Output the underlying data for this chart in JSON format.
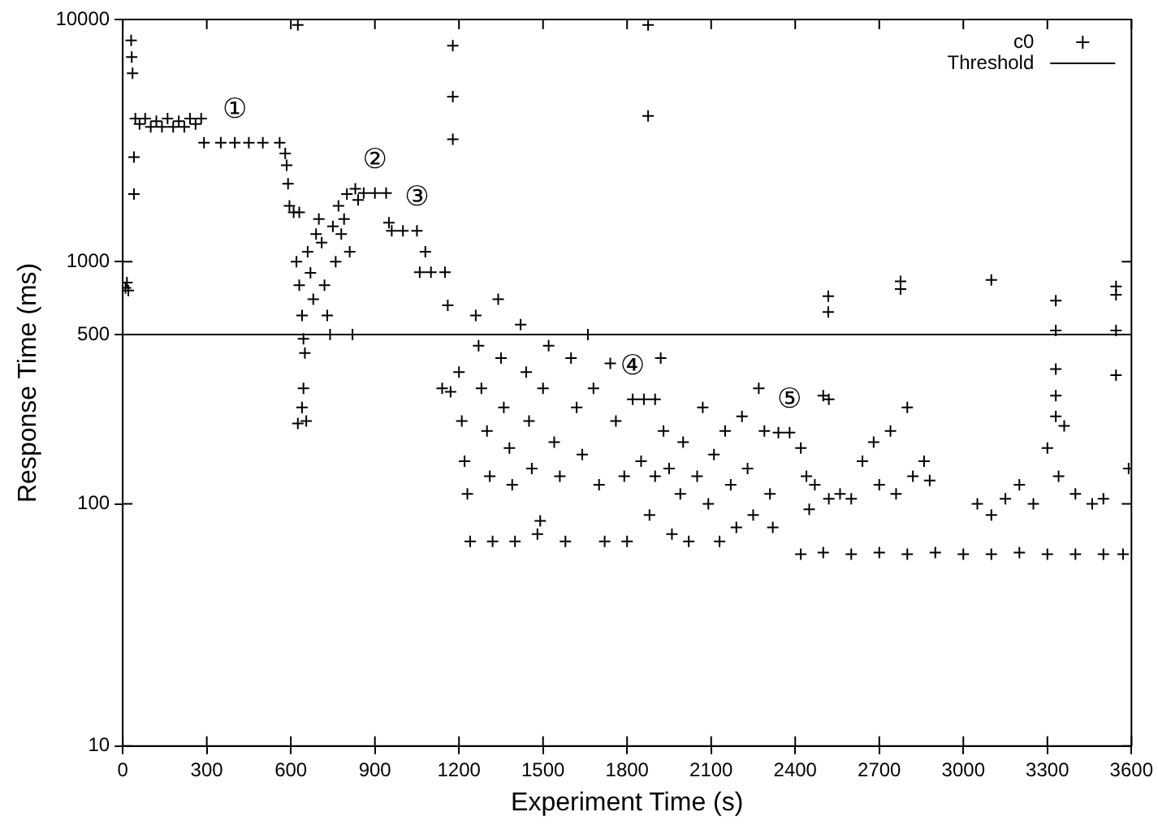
{
  "chart_data": {
    "type": "scatter",
    "xlabel": "Experiment Time (s)",
    "ylabel": "Response Time (ms)",
    "xlim": [
      0,
      3600
    ],
    "xticks": [
      0,
      300,
      600,
      900,
      1200,
      1500,
      1800,
      2100,
      2400,
      2700,
      3000,
      3300,
      3600
    ],
    "ylim": [
      10,
      10000
    ],
    "yticks": [
      10,
      100,
      500,
      1000,
      10000
    ],
    "log": "y",
    "grid": false,
    "legend": "top right",
    "marker": "cross",
    "series": [
      {
        "name": "c0",
        "color": "#000000",
        "x": [
          10,
          15,
          20,
          30,
          32,
          35,
          40,
          40,
          45,
          60,
          80,
          100,
          120,
          140,
          160,
          180,
          200,
          220,
          240,
          260,
          280,
          290,
          350,
          400,
          450,
          500,
          560,
          580,
          585,
          590,
          595,
          610,
          630,
          620,
          630,
          640,
          645,
          650,
          625,
          640,
          645,
          655,
          625,
          660,
          670,
          680,
          690,
          700,
          710,
          720,
          730,
          740,
          750,
          760,
          770,
          780,
          790,
          800,
          810,
          820,
          830,
          840,
          860,
          900,
          940,
          950,
          960,
          1000,
          1050,
          1080,
          1060,
          1100,
          1150,
          1160,
          1140,
          1170,
          1178,
          1178,
          1178,
          1200,
          1210,
          1220,
          1230,
          1240,
          1260,
          1270,
          1280,
          1300,
          1310,
          1320,
          1340,
          1350,
          1360,
          1380,
          1390,
          1400,
          1420,
          1440,
          1450,
          1460,
          1480,
          1490,
          1500,
          1520,
          1540,
          1560,
          1580,
          1600,
          1620,
          1640,
          1660,
          1680,
          1700,
          1720,
          1740,
          1760,
          1790,
          1800,
          1820,
          1860,
          1900,
          1875,
          1875,
          1850,
          1880,
          1900,
          1920,
          1930,
          1950,
          1960,
          1990,
          2000,
          2020,
          2050,
          2070,
          2090,
          2110,
          2130,
          2150,
          2170,
          2190,
          2210,
          2230,
          2250,
          2270,
          2290,
          2310,
          2320,
          2340,
          2380,
          2420,
          2500,
          2600,
          2700,
          2800,
          2900,
          3000,
          3100,
          3200,
          3300,
          3400,
          3500,
          3570,
          2420,
          2440,
          2450,
          2470,
          2500,
          2520,
          2520,
          2560,
          2600,
          2640,
          2680,
          2700,
          2740,
          2760,
          2800,
          2820,
          2860,
          2880,
          3050,
          3100,
          3150,
          3200,
          3250,
          3300,
          3340,
          3360,
          3400,
          3460,
          3500,
          3590,
          2518,
          2518,
          2776,
          2776,
          3100,
          3330,
          3330,
          3330,
          3330,
          3330,
          3545,
          3545,
          3545,
          3545
        ],
        "values": [
          780,
          820,
          760,
          8200,
          7000,
          6000,
          1900,
          2700,
          3900,
          3700,
          3900,
          3600,
          3800,
          3600,
          3900,
          3600,
          3800,
          3600,
          3900,
          3700,
          3900,
          3100,
          3100,
          3100,
          3100,
          3100,
          3100,
          2800,
          2500,
          2100,
          1700,
          1600,
          1600,
          1000,
          800,
          600,
          480,
          420,
          9500,
          250,
          300,
          220,
          215,
          1100,
          900,
          700,
          1300,
          1500,
          1200,
          800,
          600,
          500,
          1400,
          1000,
          1700,
          1300,
          1500,
          1900,
          1100,
          500,
          2000,
          1800,
          1920,
          1920,
          1920,
          1450,
          1340,
          1340,
          1340,
          1100,
          905,
          905,
          905,
          660,
          300,
          290,
          7800,
          4800,
          3200,
          350,
          220,
          150,
          110,
          70,
          600,
          450,
          300,
          200,
          130,
          70,
          700,
          400,
          250,
          170,
          120,
          70,
          550,
          350,
          220,
          140,
          75,
          85,
          300,
          450,
          180,
          130,
          70,
          400,
          250,
          160,
          500,
          300,
          120,
          70,
          380,
          220,
          130,
          70,
          270,
          270,
          270,
          9500,
          4000,
          150,
          90,
          130,
          400,
          200,
          140,
          75,
          110,
          180,
          70,
          130,
          250,
          100,
          160,
          70,
          200,
          120,
          80,
          230,
          140,
          90,
          300,
          200,
          110,
          80,
          197,
          197,
          62,
          63,
          62,
          63,
          62,
          63,
          62,
          62,
          63,
          62,
          62,
          62,
          62,
          170,
          130,
          95,
          120,
          280,
          105,
          270,
          110,
          105,
          150,
          180,
          120,
          200,
          110,
          250,
          130,
          150,
          125,
          100,
          90,
          105,
          120,
          100,
          170,
          130,
          210,
          110,
          100,
          105,
          140,
          720,
          620,
          830,
          770,
          840,
          690,
          520,
          360,
          280,
          230,
          790,
          730,
          520,
          340
        ]
      }
    ],
    "ref_lines": [
      {
        "axis": "y",
        "value": 500,
        "label": "Threshold",
        "color": "#000000",
        "line_style": "solid"
      }
    ],
    "annotations": [
      {
        "text": "①",
        "x": 400,
        "y": 3100
      },
      {
        "text": "②",
        "x": 900,
        "y": 1920
      },
      {
        "text": "③",
        "x": 1050,
        "y": 1340
      },
      {
        "text": "④",
        "x": 1820,
        "y": 270
      },
      {
        "text": "⑤",
        "x": 2380,
        "y": 197
      }
    ]
  }
}
